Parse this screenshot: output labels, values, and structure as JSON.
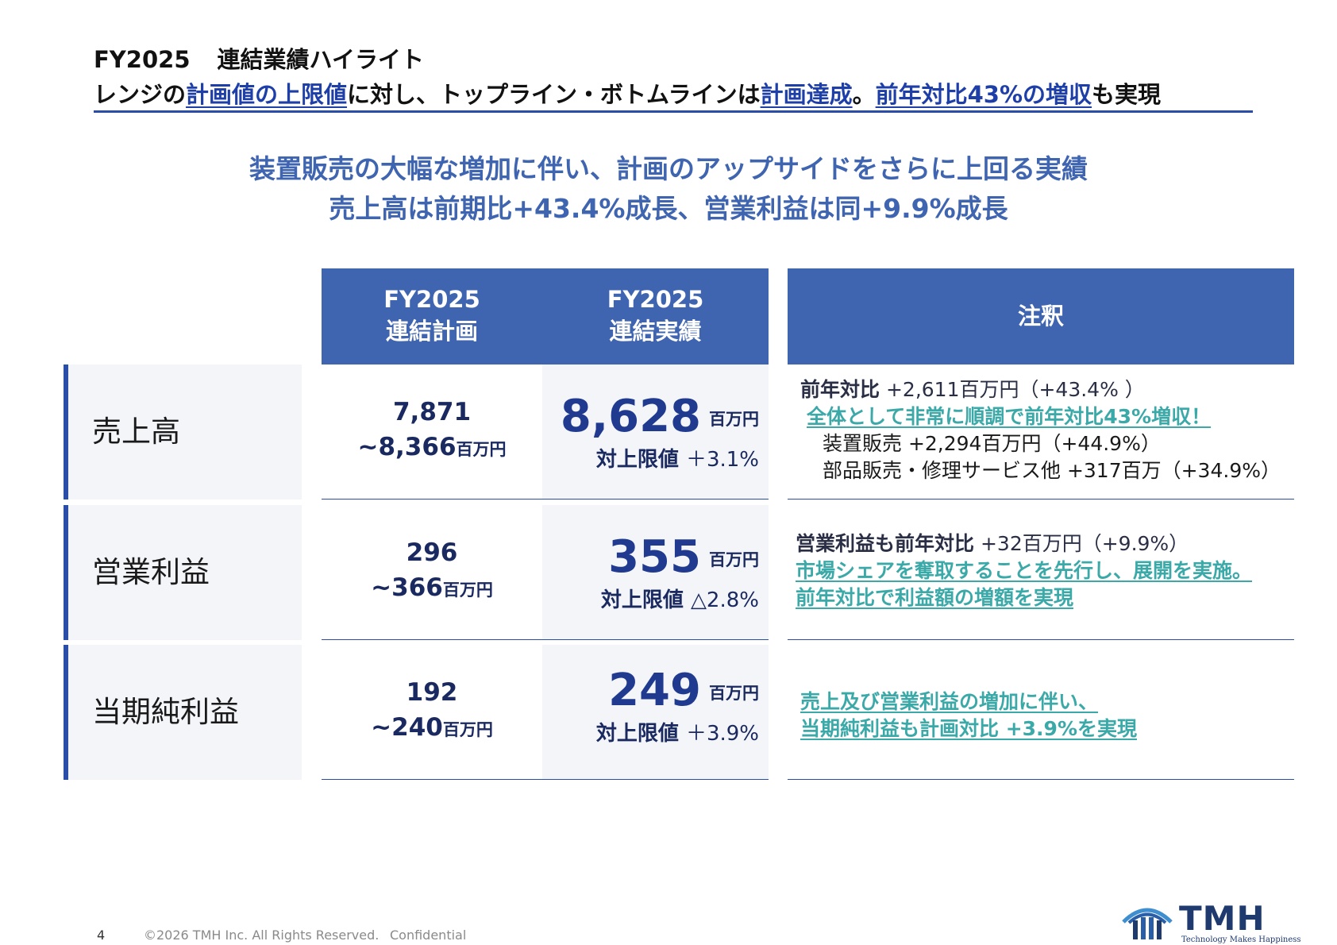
{
  "title": {
    "line1_a": "FY2025",
    "line1_b": "連結業績ハイライト",
    "line2": [
      {
        "t": "レンジの",
        "hl": false
      },
      {
        "t": "計画値の上限値",
        "hl": true
      },
      {
        "t": "に対し、トップライン・ボトムラインは",
        "hl": false
      },
      {
        "t": "計画達成",
        "hl": true
      },
      {
        "t": "。",
        "hl": false
      },
      {
        "t": "前年対比43%の増収",
        "hl": true
      },
      {
        "t": "も実現",
        "hl": false
      }
    ]
  },
  "lead": {
    "line1": "装置販売の大幅な増加に伴い、計画のアップサイドをさらに上回る実績",
    "line2": "売上高は前期比+43.4%成長、営業利益は同+9.9%成長"
  },
  "table": {
    "header_plan_1": "FY2025",
    "header_plan_2": "連結計画",
    "header_actual_1": "FY2025",
    "header_actual_2": "連結実績",
    "header_note": "注釈",
    "rows": [
      {
        "label": "売上高",
        "plan_low": "7,871",
        "plan_high": "~8,366",
        "plan_unit": "百万円",
        "actual": "8,628",
        "actual_unit": "百万円",
        "vs_label": "対上限値",
        "vs_value": "＋3.1%"
      },
      {
        "label": "営業利益",
        "plan_low": "296",
        "plan_high": "~366",
        "plan_unit": "百万円",
        "actual": "355",
        "actual_unit": "百万円",
        "vs_label": "対上限値",
        "vs_value": "△2.8%"
      },
      {
        "label": "当期純利益",
        "plan_low": "192",
        "plan_high": "~240",
        "plan_unit": "百万円",
        "actual": "249",
        "actual_unit": "百万円",
        "vs_label": "対上限値",
        "vs_value": "＋3.9%"
      }
    ],
    "notes": {
      "sales_1a": "前年対比",
      "sales_1b": " +2,611百万円（+43.4% ）",
      "sales_2": "全体として非常に順調で前年対比43%増収！",
      "sales_3": "装置販売 +2,294百万円（+44.9%）",
      "sales_4": "部品販売・修理サービス他 +317百万（+34.9%）",
      "op_1a": "営業利益も前年対比",
      "op_1b": " +32百万円（+9.9%）",
      "op_2": "市場シェアを奪取することを先行し、展開を実施。",
      "op_3": "前年対比で利益額の増額を実現",
      "net_1": "売上及び営業利益の増加に伴い、",
      "net_2": "当期純利益も計画対比 +3.9%を実現"
    }
  },
  "footer": {
    "page": "4",
    "copyright": "©2026 TMH Inc. All Rights Reserved.",
    "confidential": "Confidential"
  },
  "logo": {
    "name": "TMH",
    "tagline": "Technology Makes Happiness",
    "icon": "tmh-logo-icon"
  },
  "colors": {
    "accent": "#3f64b0",
    "navy": "#1f3a8f",
    "teal": "#3ba9a8",
    "label_bg": "#f3f5f9"
  }
}
